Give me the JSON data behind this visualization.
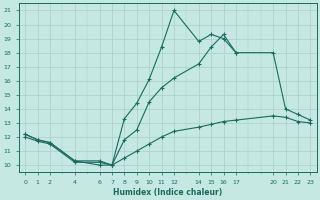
{
  "xlabel": "Humidex (Indice chaleur)",
  "line_color": "#1a6b5e",
  "bg_color": "#c5e8e2",
  "grid_color": "#a8cfc8",
  "xlim": [
    -0.5,
    23.5
  ],
  "ylim": [
    9.5,
    21.5
  ],
  "xticks": [
    0,
    1,
    2,
    4,
    6,
    7,
    8,
    9,
    10,
    11,
    12,
    14,
    15,
    16,
    17,
    20,
    21,
    22,
    23
  ],
  "yticks": [
    10,
    11,
    12,
    13,
    14,
    15,
    16,
    17,
    18,
    19,
    20,
    21
  ],
  "line1_x": [
    0,
    1,
    2,
    4,
    6,
    7,
    8,
    9,
    10,
    11,
    12,
    14,
    15,
    16,
    17
  ],
  "line1_y": [
    12.2,
    11.8,
    11.6,
    10.3,
    10.0,
    10.0,
    13.3,
    14.4,
    16.1,
    18.4,
    21.0,
    18.8,
    19.3,
    19.0,
    18.0
  ],
  "line2_x": [
    0,
    1,
    2,
    4,
    6,
    7,
    8,
    9,
    10,
    11,
    12,
    14,
    15,
    16,
    17,
    20,
    21,
    22,
    23
  ],
  "line2_y": [
    12.2,
    11.8,
    11.6,
    10.3,
    10.3,
    10.0,
    11.8,
    12.5,
    14.5,
    15.5,
    16.2,
    17.2,
    18.4,
    19.3,
    18.0,
    18.0,
    14.0,
    13.6,
    13.2
  ],
  "line3_x": [
    0,
    1,
    2,
    4,
    6,
    7,
    8,
    9,
    10,
    11,
    12,
    14,
    15,
    16,
    17,
    20,
    21,
    22,
    23
  ],
  "line3_y": [
    12.0,
    11.7,
    11.5,
    10.2,
    10.2,
    10.0,
    10.5,
    11.0,
    11.5,
    12.0,
    12.4,
    12.7,
    12.9,
    13.1,
    13.2,
    13.5,
    13.4,
    13.1,
    13.0
  ]
}
